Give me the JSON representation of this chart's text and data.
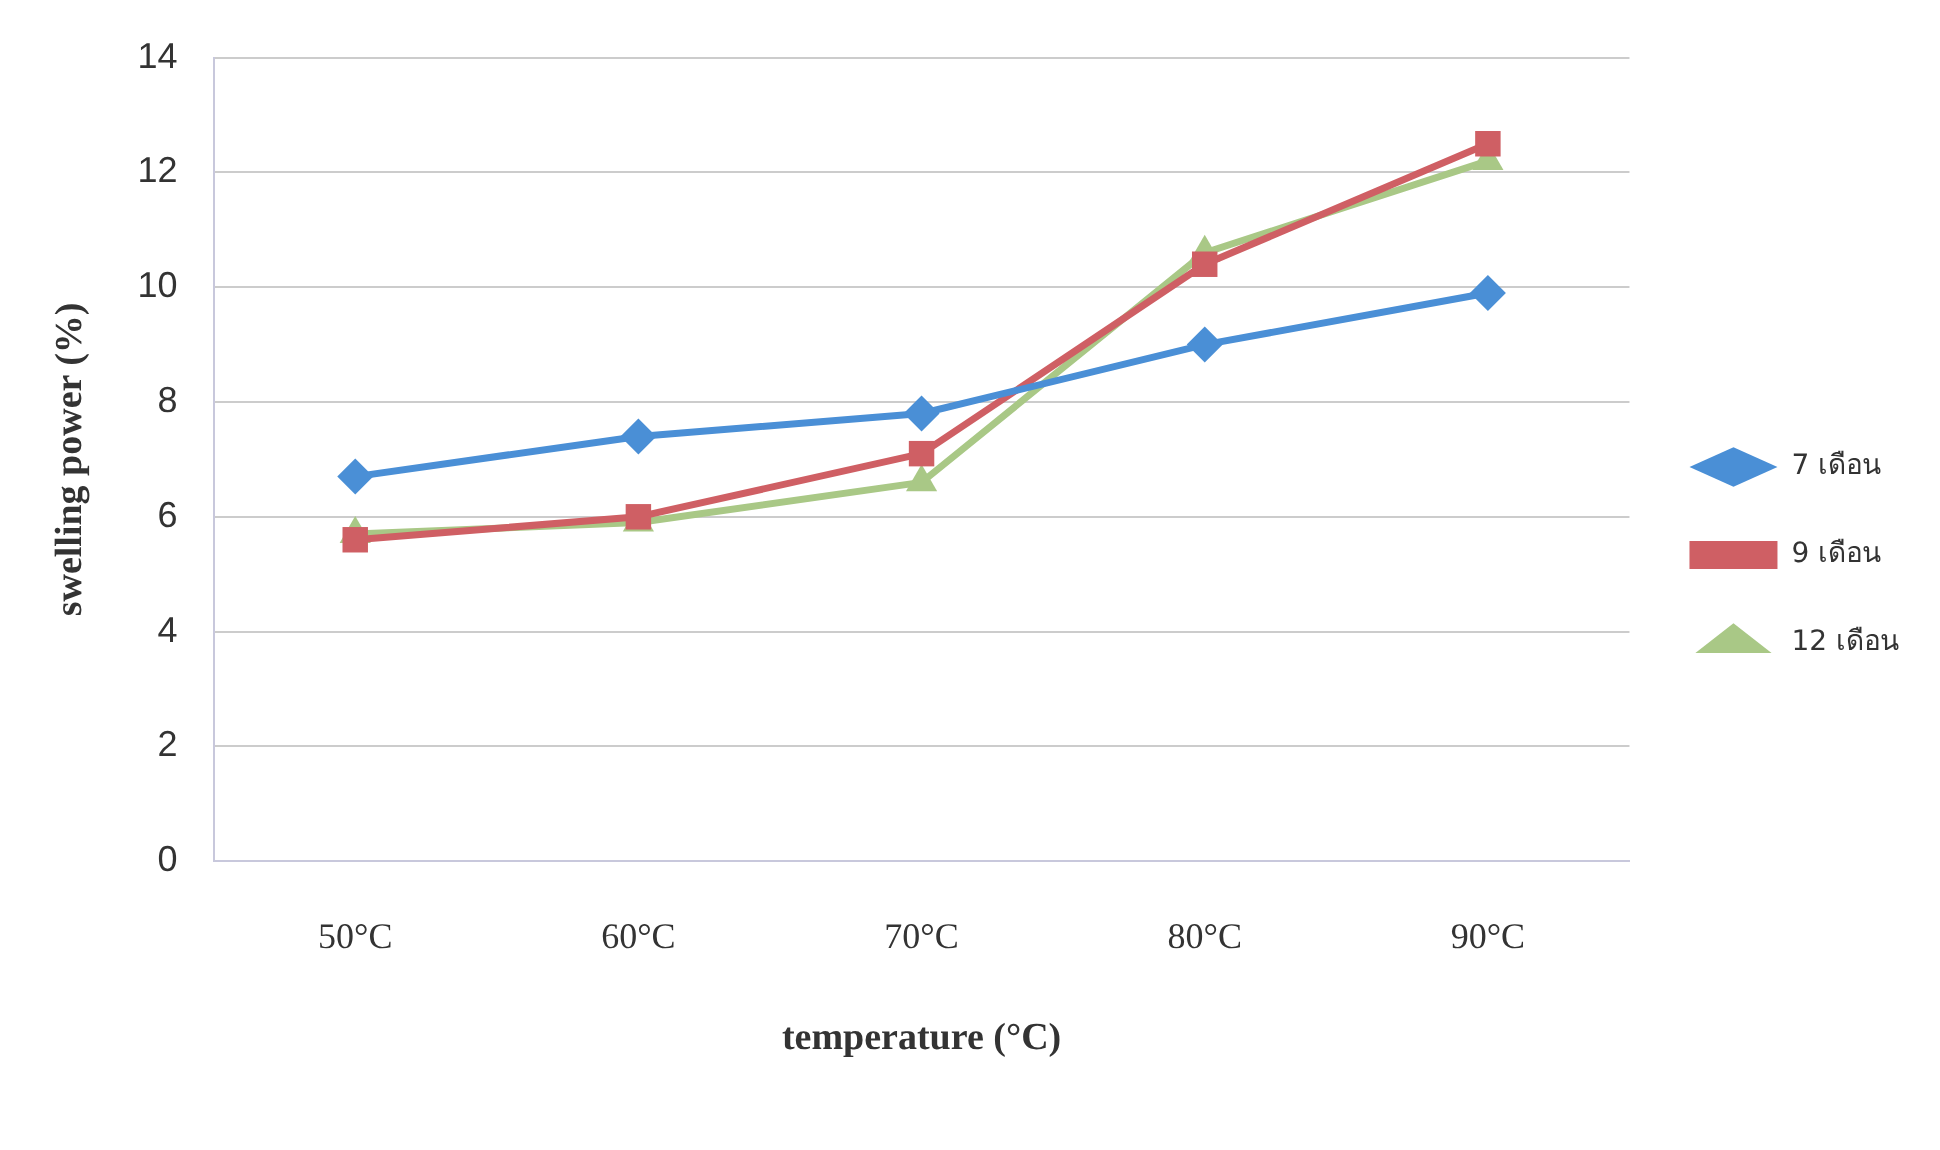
{
  "chart_data": {
    "type": "line",
    "xlabel": "temperature (°C)",
    "ylabel": "swelling power (%)",
    "categories": [
      "50°C",
      "60°C",
      "70°C",
      "80°C",
      "90°C"
    ],
    "series": [
      {
        "name": "7 เดือน",
        "color": "#4a8fd6",
        "marker": "diamond",
        "values": [
          6.7,
          7.4,
          7.8,
          9.0,
          9.9
        ]
      },
      {
        "name": "9 เดือน",
        "color": "#cf5f64",
        "marker": "square",
        "values": [
          5.6,
          6.0,
          7.1,
          10.4,
          12.5
        ]
      },
      {
        "name": "12 เดือน",
        "color": "#a9c886",
        "marker": "triangle",
        "values": [
          5.7,
          5.9,
          6.6,
          10.6,
          12.2
        ]
      }
    ],
    "ylim": [
      0,
      14
    ],
    "yticks": [
      0,
      2,
      4,
      6,
      8,
      10,
      12,
      14
    ],
    "grid": "y",
    "legend": "right"
  }
}
